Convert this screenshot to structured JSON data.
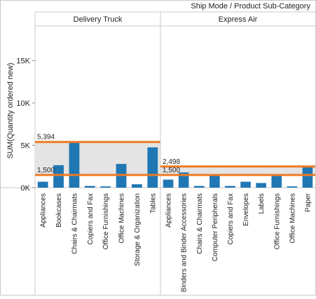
{
  "chart_data": {
    "type": "bar",
    "column_header": "Ship Mode / Product Sub-Category",
    "ylabel": "SUM(Quantity ordered new)",
    "ylim": [
      0,
      19000
    ],
    "yticks": [
      0,
      5000,
      10000,
      15000
    ],
    "ytick_labels": [
      "0K",
      "5K",
      "10K",
      "15K"
    ],
    "grid": false,
    "colors": {
      "bar": "#1f77b4",
      "reference_line": "#f07a24",
      "band": "#e4e4e4",
      "border": "#c8c8c8"
    },
    "panels": [
      {
        "name": "Delivery Truck",
        "categories": [
          "Appliances",
          "Bookcases",
          "Chairs & Chairmats",
          "Copiers and Fax",
          "Office Furnishings",
          "Office Machines",
          "Storage & Organization",
          "Tables"
        ],
        "values": [
          700,
          2650,
          5300,
          200,
          150,
          2800,
          400,
          4750
        ],
        "reference_lines": [
          {
            "value": 5394,
            "label": "5,394"
          },
          {
            "value": 1500,
            "label": "1,500"
          }
        ]
      },
      {
        "name": "Express Air",
        "categories": [
          "Appliances",
          "Binders and Binder Accessories",
          "Chairs & Chairmats",
          "Computer Peripherals",
          "Copiers and Fax",
          "Envelopes",
          "Labels",
          "Office Furnishings",
          "Office Machines",
          "Paper"
        ],
        "values": [
          950,
          1800,
          200,
          1450,
          200,
          700,
          550,
          1400,
          150,
          2450
        ],
        "reference_lines": [
          {
            "value": 2498,
            "label": "2,498"
          },
          {
            "value": 1500,
            "label": "1,500"
          }
        ]
      }
    ]
  }
}
